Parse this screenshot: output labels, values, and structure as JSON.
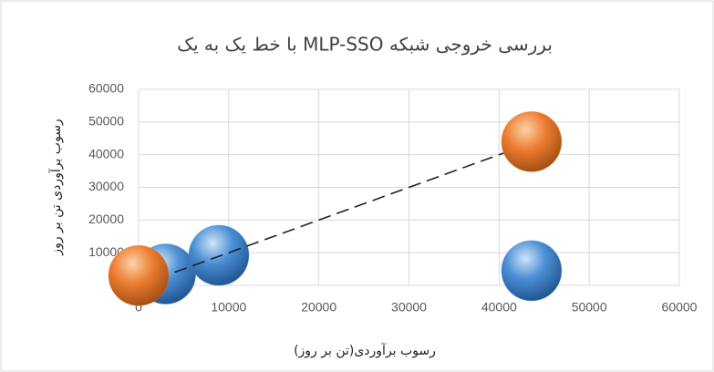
{
  "chart_data": {
    "type": "bubble",
    "title": "بررسی خروجی شبکه MLP-SSO با خط یک به یک",
    "x_label": "رسوب برآوردی(تن بر روز)",
    "y_label": "رسوب برآوردی تن بر روز",
    "xlim": [
      0,
      60000
    ],
    "xticks": [
      0,
      10000,
      20000,
      30000,
      40000,
      50000,
      60000
    ],
    "ylim": [
      0,
      60000
    ],
    "yticks": [
      0,
      10000,
      20000,
      30000,
      40000,
      50000,
      60000
    ],
    "grid": true,
    "series": [
      {
        "color": "#4a8fd4",
        "x": [
          3000,
          8900,
          43600
        ],
        "values": [
          3500,
          9200,
          4500
        ]
      },
      {
        "color": "#ed7d31",
        "x": [
          0,
          43600
        ],
        "values": [
          3000,
          44000
        ]
      }
    ],
    "line": {
      "color": "#222222",
      "x": [
        0,
        44000
      ],
      "values": [
        0,
        44000
      ]
    }
  }
}
